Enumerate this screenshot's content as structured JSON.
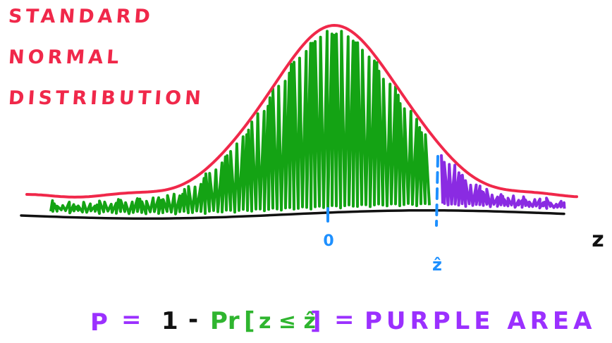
{
  "title": {
    "lines": [
      "STANDARD",
      "NORMAL",
      "DISTRIBUTION"
    ],
    "color": "#f0284a"
  },
  "axis": {
    "variable_label": "z",
    "zero_label": "0",
    "zhat_label": "ẑ"
  },
  "formula": {
    "p": "P",
    "eq1": "=",
    "one": "1",
    "minus": "-",
    "pr": "Pr",
    "open": "[",
    "cond": "z ≤ ẑ",
    "close": "]",
    "eq2": "=",
    "rhs": "PURPLE AREA"
  },
  "colors": {
    "curve": "#f0284a",
    "green_fill": "#14a314",
    "purple_fill": "#8a2be2",
    "axis": "#111111",
    "marker": "#1e90ff",
    "formula_green": "#2fb52f",
    "formula_purple": "#9b30ff",
    "formula_black": "#111111"
  }
}
